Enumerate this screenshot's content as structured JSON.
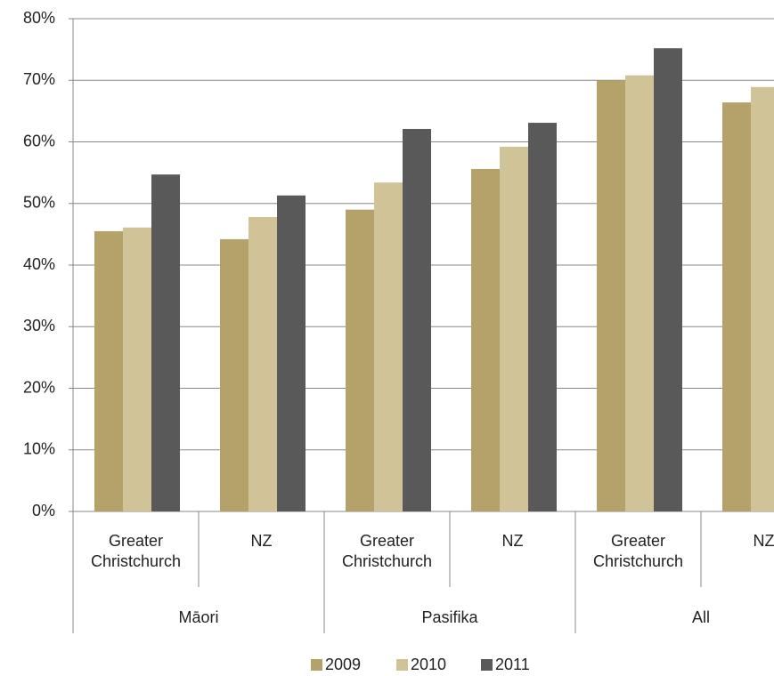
{
  "chart_data": {
    "type": "bar",
    "categories": [
      "Greater Christchurch",
      "NZ",
      "Greater Christchurch",
      "NZ",
      "Greater Christchurch",
      "NZ"
    ],
    "groups": [
      "Māori",
      "Pasifika",
      "All"
    ],
    "series": [
      {
        "name": "2009",
        "color": "#b5a26a",
        "values": [
          45.5,
          44.2,
          49.0,
          55.6,
          70.0,
          66.4
        ]
      },
      {
        "name": "2010",
        "color": "#cfc397",
        "values": [
          46.1,
          47.8,
          53.4,
          59.2,
          70.8,
          68.9
        ]
      },
      {
        "name": "2011",
        "color": "#595959",
        "values": [
          54.7,
          51.3,
          62.1,
          63.1,
          75.2,
          null
        ]
      }
    ],
    "ylim": [
      0,
      80
    ],
    "yticks": [
      {
        "value": 0,
        "label": "0%"
      },
      {
        "value": 10,
        "label": "10%"
      },
      {
        "value": 20,
        "label": "20%"
      },
      {
        "value": 30,
        "label": "30%"
      },
      {
        "value": 40,
        "label": "40%"
      },
      {
        "value": 50,
        "label": "50%"
      },
      {
        "value": 60,
        "label": "60%"
      },
      {
        "value": 70,
        "label": "70%"
      },
      {
        "value": 80,
        "label": "80%"
      }
    ],
    "grid": true
  }
}
